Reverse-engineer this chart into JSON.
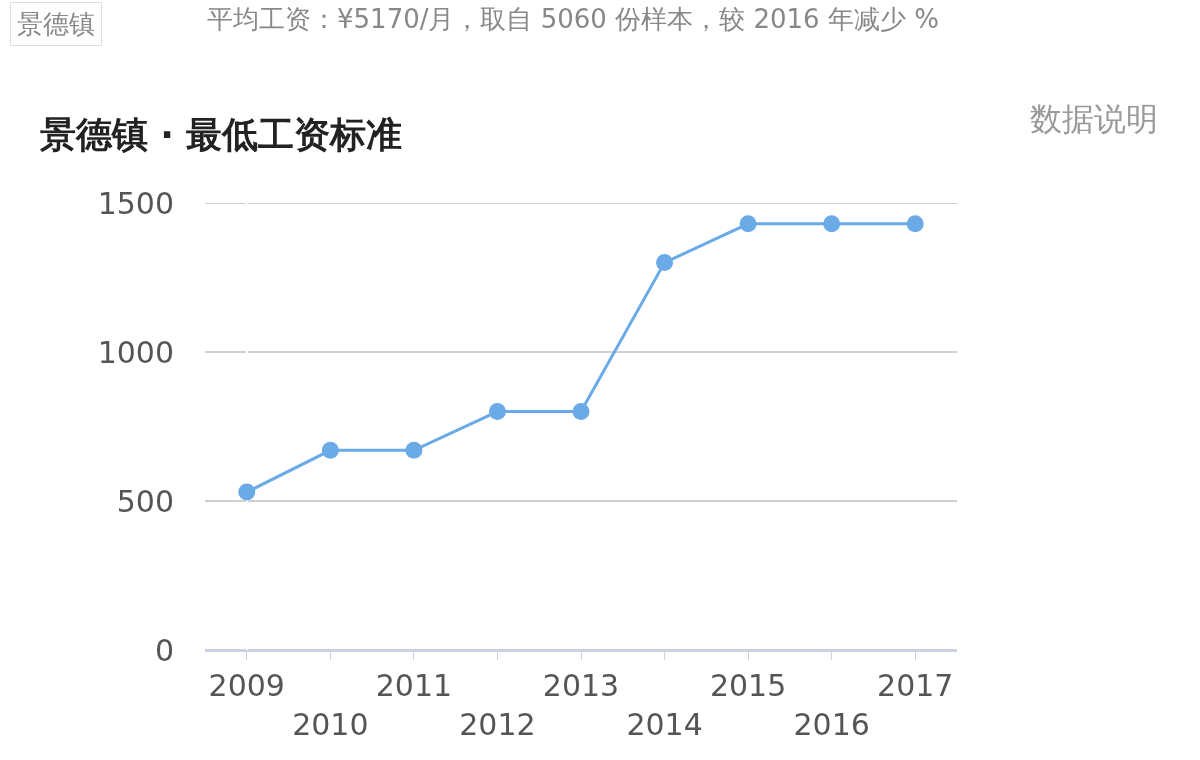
{
  "chart_data": {
    "type": "line",
    "title": "景德镇 · 最低工资标准",
    "categories": [
      "2009",
      "2010",
      "2011",
      "2012",
      "2013",
      "2014",
      "2015",
      "2016",
      "2017"
    ],
    "series": [
      {
        "color": "#6aaae6",
        "values": [
          530,
          670,
          670,
          800,
          800,
          1300,
          1430,
          1430,
          1430
        ]
      }
    ],
    "ylim": [
      0,
      1500
    ],
    "yticks": [
      0,
      500,
      1000,
      1500
    ],
    "grid": "y",
    "marker": "circle",
    "line_style": "solid",
    "annotations": [
      "景德镇",
      "平均工资：¥5170/月，取自 5060 份样本，较 2016 年减少 %",
      "数据说明"
    ]
  }
}
